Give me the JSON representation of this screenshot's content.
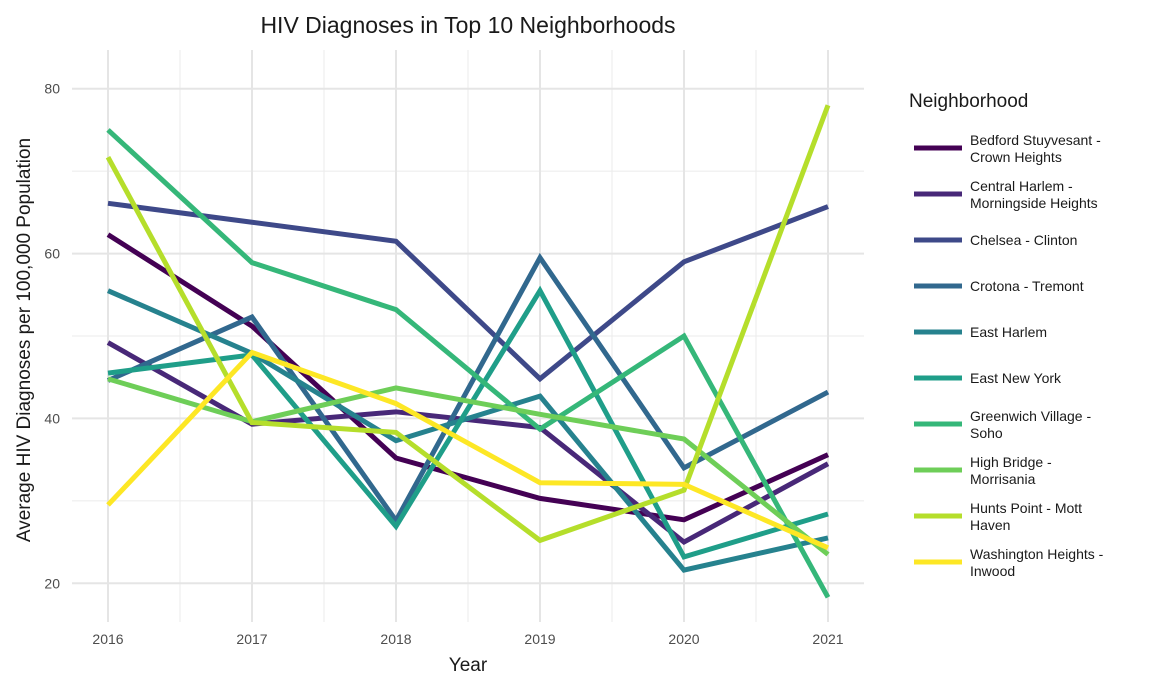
{
  "chart_data": {
    "type": "line",
    "title": "HIV Diagnoses in Top 10 Neighborhoods",
    "xlabel": "Year",
    "ylabel": "Average HIV Diagnoses per 100,000 Population",
    "x": [
      2016,
      2017,
      2018,
      2019,
      2020,
      2021
    ],
    "x_tick_labels": [
      "2016",
      "2017",
      "2018",
      "2019",
      "2020",
      "2021"
    ],
    "xlim": [
      2015.75,
      2021.25
    ],
    "ylim": [
      15.3,
      84.7
    ],
    "y_ticks": [
      20,
      40,
      60,
      80
    ],
    "y_tick_labels": [
      "20",
      "40",
      "60",
      "80"
    ],
    "grid": true,
    "legend": {
      "title": "Neighborhood",
      "placement": "right"
    },
    "series": [
      {
        "name": "Bedford Stuyvesant - Crown Heights",
        "label_lines": [
          "Bedford Stuyvesant -",
          "Crown Heights"
        ],
        "color": "#440154",
        "values": [
          62.3,
          51.2,
          35.2,
          30.3,
          27.7,
          35.6
        ]
      },
      {
        "name": "Central Harlem - Morningside Heights",
        "label_lines": [
          "Central Harlem -",
          "Morningside Heights"
        ],
        "color": "#482878",
        "values": [
          49.2,
          39.3,
          40.8,
          38.9,
          25.0,
          34.5
        ]
      },
      {
        "name": "Chelsea - Clinton",
        "label_lines": [
          "Chelsea - Clinton"
        ],
        "color": "#3e4989",
        "values": [
          66.1,
          63.8,
          61.5,
          44.8,
          59.0,
          65.7
        ]
      },
      {
        "name": "Crotona - Tremont",
        "label_lines": [
          "Crotona - Tremont"
        ],
        "color": "#31688e",
        "values": [
          44.6,
          52.3,
          27.6,
          59.5,
          34.0,
          43.2
        ]
      },
      {
        "name": "East Harlem",
        "label_lines": [
          "East Harlem"
        ],
        "color": "#26828e",
        "values": [
          55.5,
          47.9,
          37.3,
          42.7,
          21.6,
          25.5
        ]
      },
      {
        "name": "East New York",
        "label_lines": [
          "East New York"
        ],
        "color": "#1f9e89",
        "values": [
          45.5,
          47.7,
          26.9,
          55.5,
          23.2,
          28.4
        ]
      },
      {
        "name": "Greenwich Village - Soho",
        "label_lines": [
          "Greenwich Village -",
          "Soho"
        ],
        "color": "#35b779",
        "values": [
          75.0,
          58.9,
          53.2,
          38.7,
          50.0,
          18.3
        ]
      },
      {
        "name": "High Bridge - Morrisania",
        "label_lines": [
          "High Bridge -",
          "Morrisania"
        ],
        "color": "#6ece58",
        "values": [
          44.8,
          39.6,
          43.7,
          40.5,
          37.5,
          23.5
        ]
      },
      {
        "name": "Hunts Point - Mott Haven",
        "label_lines": [
          "Hunts Point - Mott",
          "Haven"
        ],
        "color": "#b5de2b",
        "values": [
          71.7,
          39.5,
          38.3,
          25.2,
          31.3,
          78.0
        ]
      },
      {
        "name": "Washington Heights - Inwood",
        "label_lines": [
          "Washington Heights -",
          "Inwood"
        ],
        "color": "#fde725",
        "values": [
          29.5,
          48.0,
          41.8,
          32.2,
          32.0,
          24.3
        ]
      }
    ]
  }
}
